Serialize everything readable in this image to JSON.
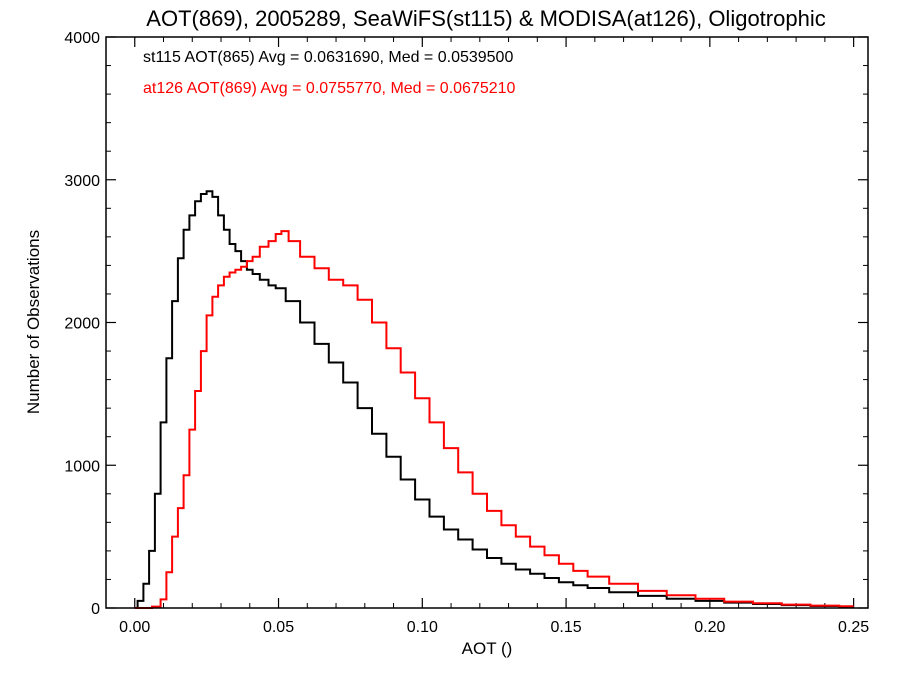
{
  "chart_data": {
    "type": "line",
    "title": "AOT(869), 2005289, SeaWiFS(st115) & MODISA(at126), Oligotrophic",
    "xlabel": "AOT ()",
    "ylabel": "Number of Observations",
    "xlim": [
      -0.01,
      0.255
    ],
    "ylim": [
      0,
      4000
    ],
    "xticks": [
      0.0,
      0.05,
      0.1,
      0.15,
      0.2,
      0.25
    ],
    "xtick_labels": [
      "0.00",
      "0.05",
      "0.10",
      "0.15",
      "0.20",
      "0.25"
    ],
    "yticks": [
      0,
      1000,
      2000,
      3000,
      4000
    ],
    "ytick_labels": [
      "0",
      "1000",
      "2000",
      "3000",
      "4000"
    ],
    "grid": false,
    "step": "histogram",
    "series": [
      {
        "name": "st115",
        "color": "#000000",
        "annotation": "st115 AOT(865) Avg = 0.0631690, Med = 0.0539500",
        "x": [
          0.0,
          0.002,
          0.004,
          0.006,
          0.008,
          0.01,
          0.012,
          0.014,
          0.016,
          0.018,
          0.02,
          0.022,
          0.024,
          0.026,
          0.028,
          0.03,
          0.032,
          0.034,
          0.036,
          0.038,
          0.04,
          0.042,
          0.045,
          0.048,
          0.05,
          0.055,
          0.06,
          0.065,
          0.07,
          0.075,
          0.08,
          0.085,
          0.09,
          0.095,
          0.1,
          0.105,
          0.11,
          0.115,
          0.12,
          0.125,
          0.13,
          0.135,
          0.14,
          0.145,
          0.15,
          0.155,
          0.16,
          0.17,
          0.18,
          0.19,
          0.2,
          0.21,
          0.22,
          0.23,
          0.24,
          0.25
        ],
        "y": [
          0,
          50,
          170,
          400,
          800,
          1300,
          1750,
          2150,
          2450,
          2650,
          2750,
          2850,
          2900,
          2920,
          2880,
          2750,
          2650,
          2550,
          2500,
          2430,
          2370,
          2340,
          2300,
          2260,
          2240,
          2150,
          2000,
          1850,
          1720,
          1580,
          1400,
          1220,
          1060,
          900,
          760,
          640,
          550,
          480,
          410,
          350,
          310,
          270,
          240,
          210,
          180,
          160,
          140,
          110,
          85,
          65,
          50,
          38,
          28,
          20,
          14,
          10
        ]
      },
      {
        "name": "at126",
        "color": "#ff0000",
        "annotation": "at126 AOT(869) Avg = 0.0755770, Med = 0.0675210",
        "x": [
          0.0,
          0.004,
          0.008,
          0.01,
          0.012,
          0.014,
          0.016,
          0.018,
          0.02,
          0.022,
          0.024,
          0.026,
          0.028,
          0.03,
          0.032,
          0.034,
          0.036,
          0.038,
          0.04,
          0.042,
          0.045,
          0.048,
          0.05,
          0.052,
          0.055,
          0.06,
          0.065,
          0.07,
          0.075,
          0.08,
          0.085,
          0.09,
          0.095,
          0.1,
          0.105,
          0.11,
          0.115,
          0.12,
          0.125,
          0.13,
          0.135,
          0.14,
          0.145,
          0.15,
          0.155,
          0.16,
          0.17,
          0.18,
          0.19,
          0.2,
          0.21,
          0.22,
          0.23,
          0.24,
          0.25
        ],
        "y": [
          0,
          0,
          10,
          60,
          250,
          500,
          700,
          930,
          1250,
          1520,
          1800,
          2050,
          2180,
          2260,
          2320,
          2350,
          2370,
          2390,
          2430,
          2460,
          2530,
          2570,
          2620,
          2640,
          2570,
          2460,
          2380,
          2300,
          2260,
          2160,
          2000,
          1820,
          1650,
          1470,
          1300,
          1120,
          950,
          800,
          680,
          580,
          500,
          430,
          370,
          310,
          260,
          220,
          170,
          120,
          90,
          65,
          45,
          33,
          24,
          17,
          12
        ]
      }
    ]
  }
}
